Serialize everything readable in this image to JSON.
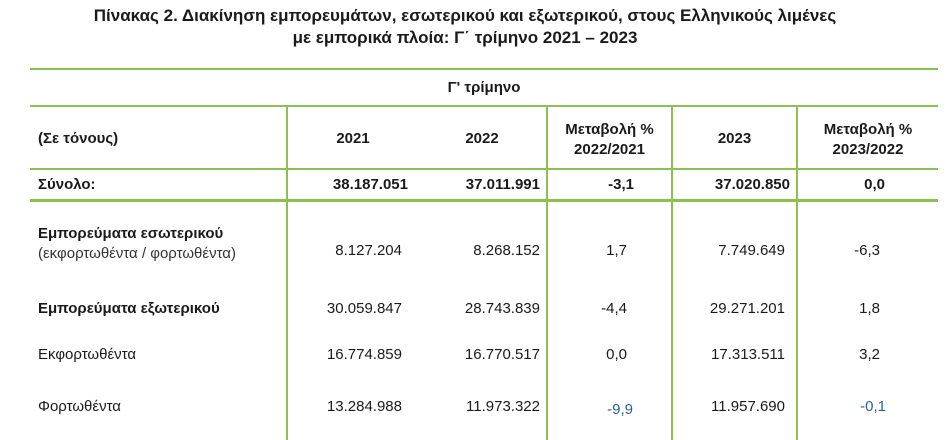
{
  "title": {
    "line1": "Πίνακας 2. Διακίνηση εμπορευμάτων, εσωτερικού και εξωτερικού, στους Ελληνικούς λιμένες",
    "line2": "με εμπορικά πλοία: Γ΄ τρίμηνο 2021 – 2023"
  },
  "table": {
    "group_header": "Γ' τρίμηνο",
    "headers": {
      "unit": "(Σε τόνους)",
      "y2021": "2021",
      "y2022": "2022",
      "change1_line1": "Μεταβολή %",
      "change1_line2": "2022/2021",
      "y2023": "2023",
      "change2_line1": "Μεταβολή %",
      "change2_line2": "2023/2022"
    },
    "rows": [
      {
        "label": "Σύνολο:",
        "v2021": "38.187.051",
        "v2022": "37.011.991",
        "ch1": "-3,1",
        "v2023": "37.020.850",
        "ch2": "0,0"
      },
      {
        "label": "Εμπορεύματα εσωτερικού",
        "sublabel": "(εκφορτωθέντα / φορτωθέντα)",
        "v2021": "8.127.204",
        "v2022": "8.268.152",
        "ch1": "1,7",
        "v2023": "7.749.649",
        "ch2": "-6,3"
      },
      {
        "label": "Εμπορεύματα εξωτερικού",
        "v2021": "30.059.847",
        "v2022": "28.743.839",
        "ch1": "-4,4",
        "v2023": "29.271.201",
        "ch2": "1,8"
      },
      {
        "label": "Εκφορτωθέντα",
        "v2021": "16.774.859",
        "v2022": "16.770.517",
        "ch1": "0,0",
        "v2023": "17.313.511",
        "ch2": "3,2"
      },
      {
        "label": "Φορτωθέντα",
        "v2021": "13.284.988",
        "v2022": "11.973.322",
        "ch1": "-9,9",
        "v2023": "11.957.690",
        "ch2": "-0,1"
      }
    ]
  },
  "colors": {
    "border": "#8cc152",
    "text": "#1a1a1a",
    "highlight_text": "#2f5f8f"
  }
}
